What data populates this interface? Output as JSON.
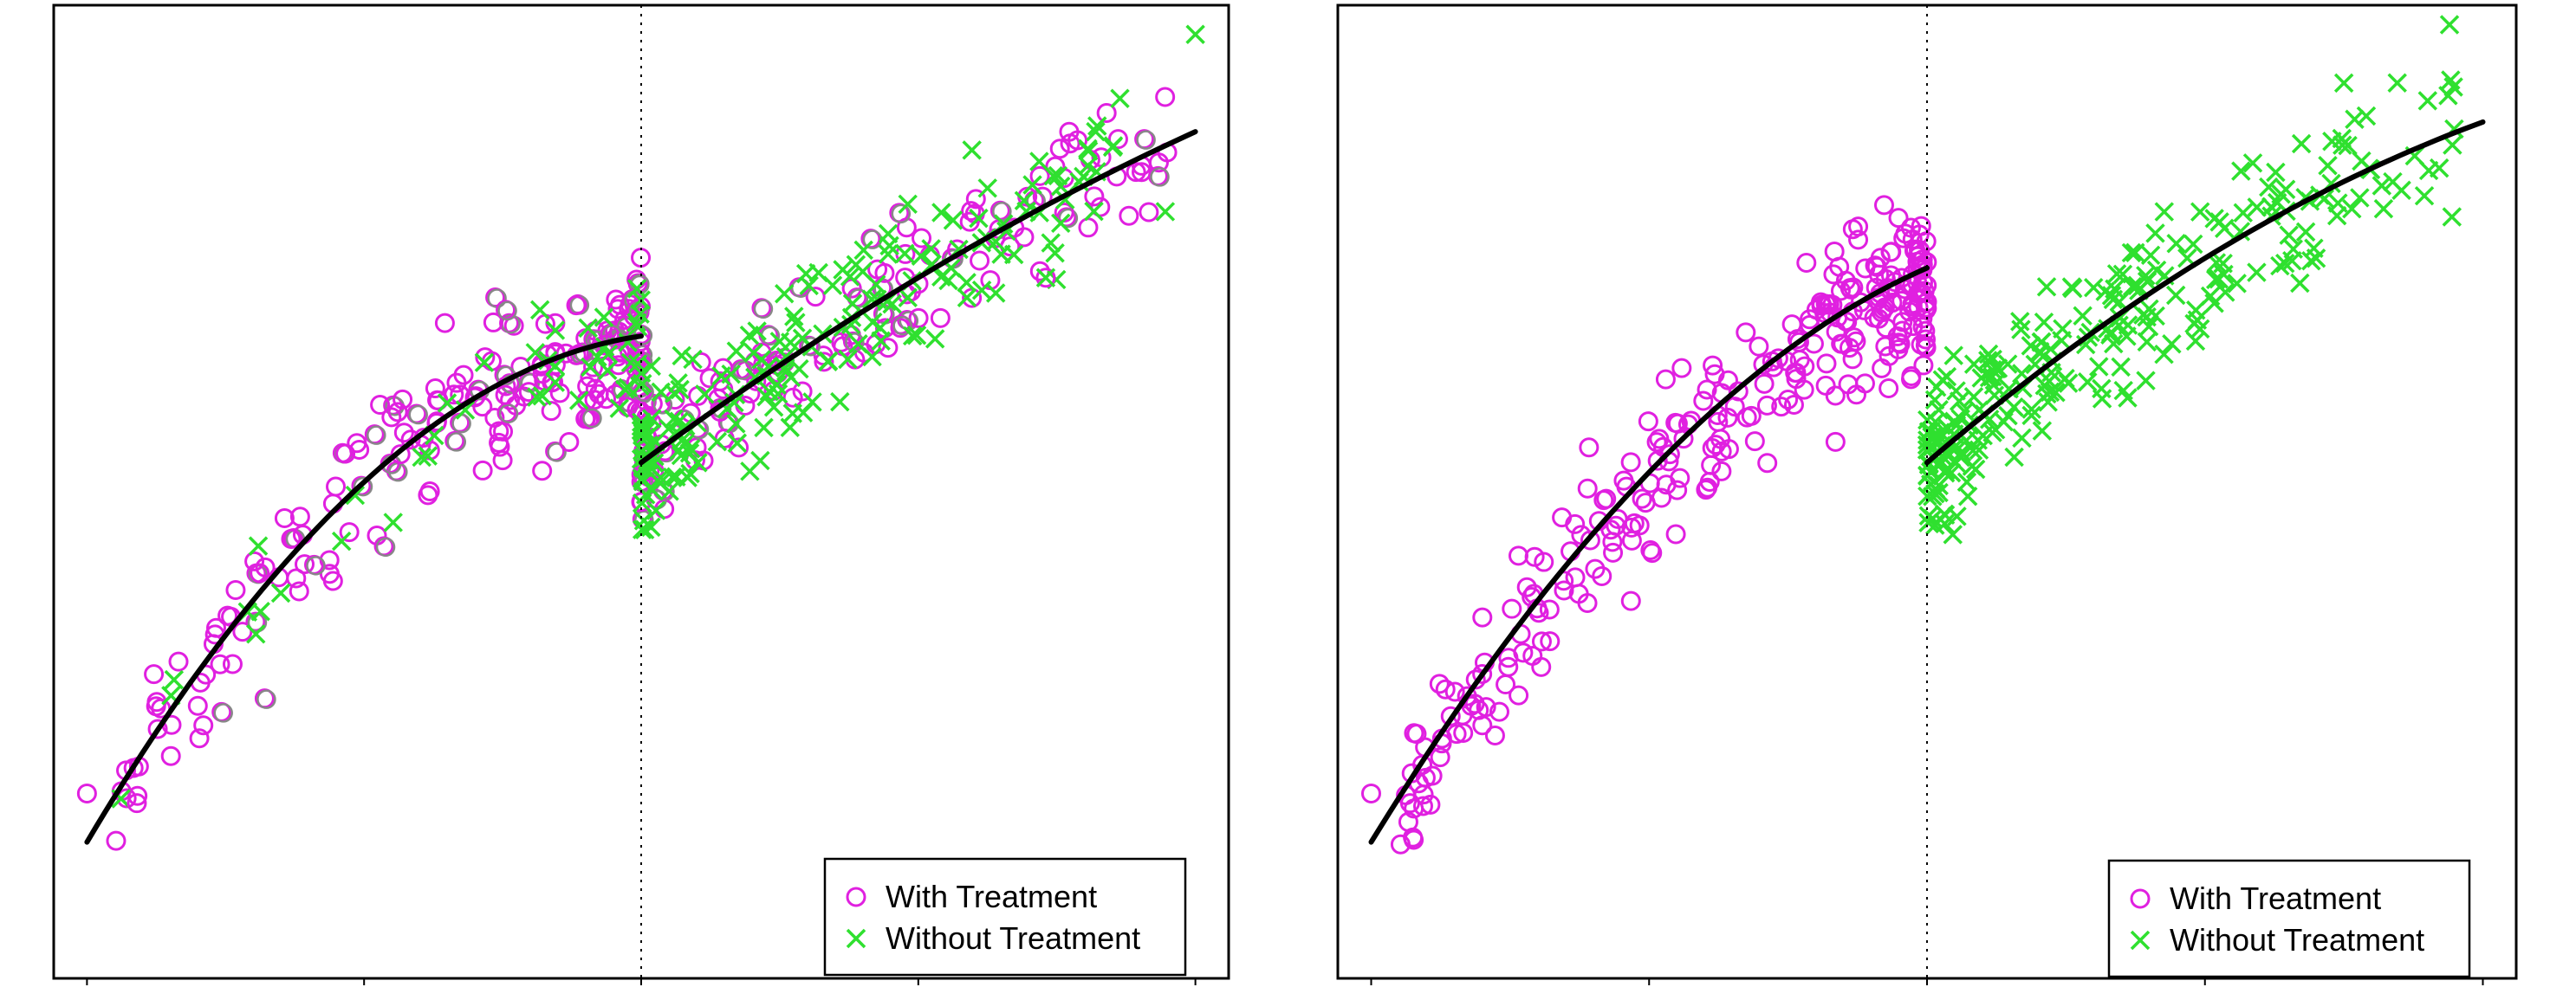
{
  "colors": {
    "with_treatment": "#e020e0",
    "without_treatment": "#2fe02f",
    "fit": "#000000"
  },
  "legend": {
    "placement": "bottom-right",
    "with_label": "With Treatment",
    "without_label": "Without Treatment"
  },
  "chart_data": [
    {
      "type": "scatter",
      "title": "",
      "xlabel": "",
      "ylabel": "",
      "xlim": [
        -1.06,
        1.06
      ],
      "ylim": [
        0,
        1
      ],
      "cutoff_x": 0,
      "grid": false,
      "ticks_labeled": false,
      "series": [
        {
          "name": "With Treatment",
          "marker": "circle",
          "generator": {
            "seed": 11,
            "n_below": 210,
            "n_above": 150,
            "noise": 0.045,
            "low_tail": true,
            "gray_overlay": true
          }
        },
        {
          "name": "Without Treatment",
          "marker": "x",
          "generator": {
            "seed": 23,
            "n_below": 45,
            "n_above": 190,
            "noise": 0.05,
            "gray_overlay": true
          }
        }
      ],
      "fit": {
        "left": {
          "x": [
            -1.0,
            -0.5,
            0.0
          ],
          "y": [
            0.14,
            0.51,
            0.66
          ]
        },
        "right": {
          "x": [
            0.0,
            0.5,
            1.0
          ],
          "y": [
            0.53,
            0.72,
            0.87
          ]
        }
      },
      "outliers": [
        {
          "series": 0,
          "x": -1.0,
          "y": 0.19
        },
        {
          "series": 0,
          "x": -0.91,
          "y": 0.18
        },
        {
          "series": 0,
          "x": -0.8,
          "y": 0.28
        },
        {
          "series": 0,
          "x": -0.79,
          "y": 0.26
        },
        {
          "series": 1,
          "x": 1.0,
          "y": 0.97
        },
        {
          "series": 1,
          "x": 0.82,
          "y": 0.87
        },
        {
          "series": 0,
          "x": 0.73,
          "y": 0.72
        },
        {
          "series": 1,
          "x": 0.73,
          "y": 0.72
        }
      ]
    },
    {
      "type": "scatter",
      "title": "",
      "xlabel": "",
      "ylabel": "",
      "xlim": [
        -1.06,
        1.06
      ],
      "ylim": [
        0,
        1
      ],
      "cutoff_x": 0,
      "grid": false,
      "ticks_labeled": false,
      "series": [
        {
          "name": "With Treatment",
          "marker": "circle",
          "generator": {
            "seed": 37,
            "n_below": 290,
            "n_above": 0,
            "noise": 0.045,
            "low_tail": true
          }
        },
        {
          "name": "Without Treatment",
          "marker": "x",
          "generator": {
            "seed": 53,
            "n_below": 0,
            "n_above": 260,
            "noise": 0.05
          }
        }
      ],
      "fit": {
        "left": {
          "x": [
            -1.0,
            -0.5,
            0.0
          ],
          "y": [
            0.14,
            0.52,
            0.73
          ]
        },
        "right": {
          "x": [
            0.0,
            0.5,
            1.0
          ],
          "y": [
            0.53,
            0.74,
            0.88
          ]
        }
      },
      "outliers": [
        {
          "series": 0,
          "x": -1.0,
          "y": 0.19
        },
        {
          "series": 0,
          "x": -0.93,
          "y": 0.18
        },
        {
          "series": 0,
          "x": -0.82,
          "y": 0.28
        },
        {
          "series": 0,
          "x": -0.8,
          "y": 0.26
        },
        {
          "series": 1,
          "x": 0.94,
          "y": 0.98
        },
        {
          "series": 1,
          "x": 0.75,
          "y": 0.92
        },
        {
          "series": 1,
          "x": 0.7,
          "y": 0.74
        }
      ]
    }
  ]
}
